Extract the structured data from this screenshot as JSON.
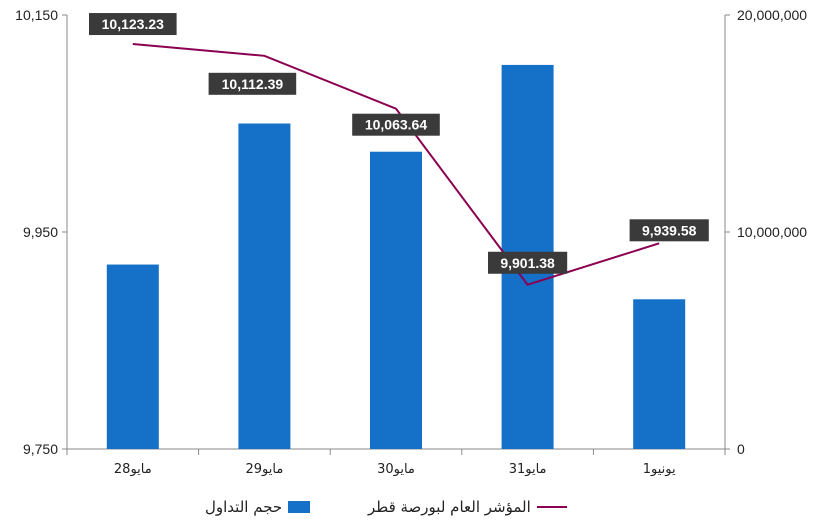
{
  "chart_data": {
    "type": "bar",
    "categories": [
      "مايو28",
      "مايو29",
      "مايو30",
      "مايو31",
      "يونيو1"
    ],
    "series": [
      {
        "name": "حجم التداول",
        "type": "bar",
        "axis": "right",
        "values": [
          8500000,
          15000000,
          13700000,
          17700000,
          6900000
        ],
        "color": "#1570c7"
      },
      {
        "name": "المؤشر العام لبورصة قطر",
        "type": "line",
        "axis": "left",
        "values": [
          10123.23,
          10112.39,
          10063.64,
          9901.38,
          9939.58
        ],
        "labels": [
          "10,123.23",
          "10,112.39",
          "10,063.64",
          "9,901.38",
          "9,939.58"
        ],
        "color": "#8b0050"
      }
    ],
    "left_axis": {
      "ylim": [
        9750,
        10150
      ],
      "ticks": [
        "9,750",
        "9,950",
        "10,150"
      ],
      "tick_values": [
        9750,
        9950,
        10150
      ]
    },
    "right_axis": {
      "ylim": [
        0,
        20000000
      ],
      "ticks": [
        "0",
        "10,000,000",
        "20,000,000"
      ],
      "tick_values": [
        0,
        10000000,
        20000000
      ]
    },
    "grid": false,
    "legend_position": "bottom",
    "label_box_color": "#3a3a3a"
  }
}
